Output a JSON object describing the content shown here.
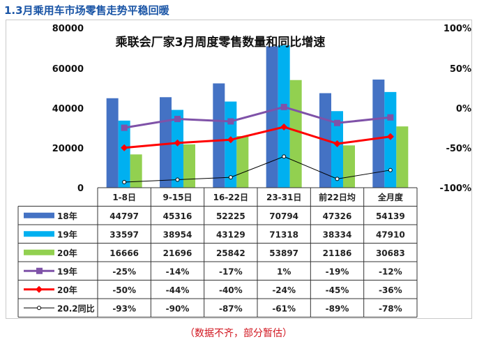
{
  "page": {
    "heading": "1.3月乘用车市场零售走势平稳回暖",
    "footnote": "（数据不齐，部分暂估）"
  },
  "chart_data": {
    "type": "bar",
    "title": "乘联会厂家3月周度零售数量和同比增速",
    "categories": [
      "1-8日",
      "9-15日",
      "16-22日",
      "23-31日",
      "前22日均",
      "全月度"
    ],
    "y_left": {
      "ticks": [
        "80000",
        "60000",
        "40000",
        "20000",
        "0"
      ],
      "range": [
        0,
        80000
      ]
    },
    "y_right": {
      "ticks": [
        "100%",
        "50%",
        "0%",
        "-50%",
        "-100%"
      ],
      "range": [
        -100,
        100
      ]
    },
    "bar_series": [
      {
        "name": "18年",
        "color": "#4472c4",
        "values": [
          44797,
          45316,
          52225,
          70794,
          47326,
          54139
        ]
      },
      {
        "name": "19年",
        "color": "#00b0f0",
        "values": [
          33597,
          38954,
          43129,
          71318,
          38334,
          47910
        ]
      },
      {
        "name": "20年",
        "color": "#92d050",
        "values": [
          16666,
          21696,
          25842,
          53897,
          21186,
          30683
        ]
      }
    ],
    "line_series": [
      {
        "name": "19年",
        "color": "#7f52a8",
        "marker": "square",
        "values": [
          -25,
          -14,
          -17,
          1,
          -19,
          -12
        ],
        "labels": [
          "-25%",
          "-14%",
          "-17%",
          "1%",
          "-19%",
          "-12%"
        ]
      },
      {
        "name": "20年",
        "color": "#ff0000",
        "marker": "diamond",
        "values": [
          -50,
          -44,
          -40,
          -24,
          -45,
          -36
        ],
        "labels": [
          "-50%",
          "-44%",
          "-40%",
          "-24%",
          "-45%",
          "-36%"
        ]
      },
      {
        "name": "20.2同比",
        "color": "#000000",
        "marker": "circle",
        "values": [
          -93,
          -90,
          -87,
          -61,
          -89,
          -78
        ],
        "labels": [
          "-93%",
          "-90%",
          "-87%",
          "-61%",
          "-89%",
          "-78%"
        ]
      }
    ]
  }
}
